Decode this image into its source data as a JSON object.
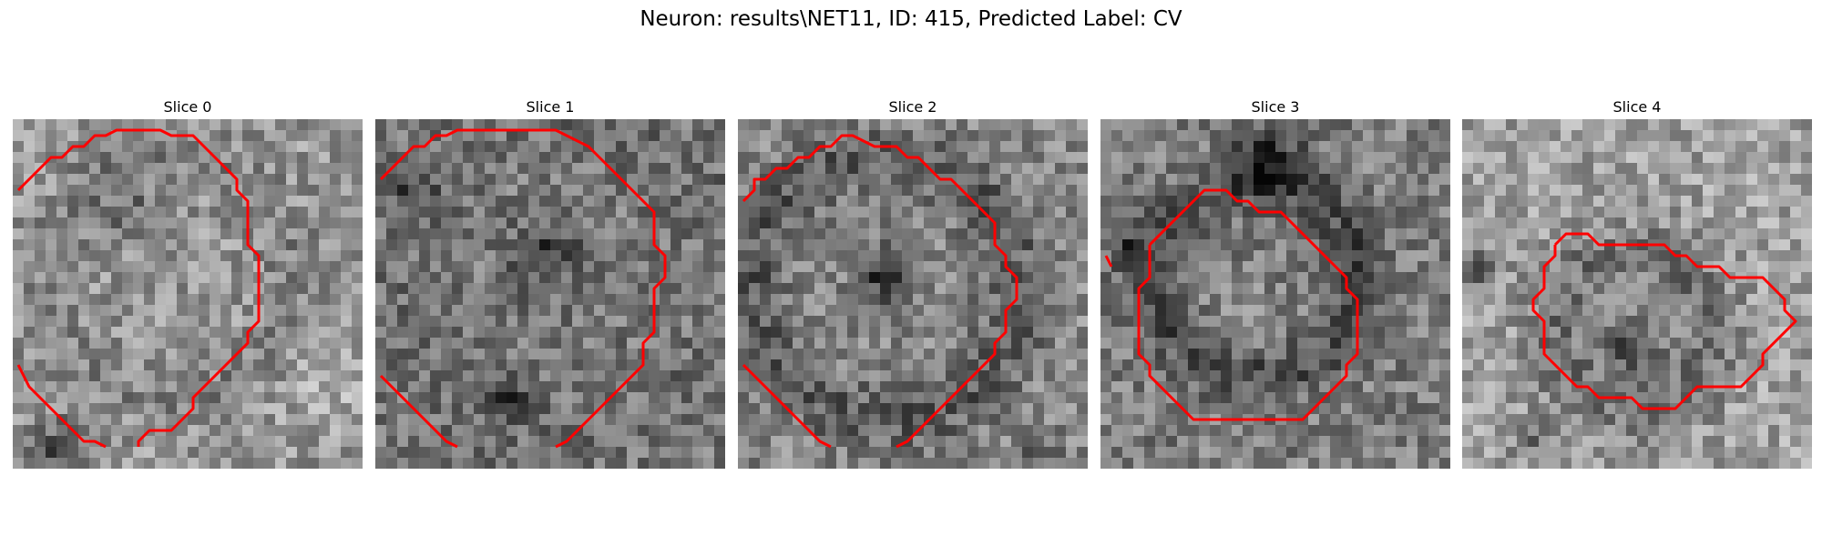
{
  "figure": {
    "title": "Neuron: results\\NET11, ID: 415, Predicted Label: CV",
    "contour_color": "#ff0000"
  },
  "slices": [
    {
      "title": "Slice 0"
    },
    {
      "title": "Slice 1"
    },
    {
      "title": "Slice 2"
    },
    {
      "title": "Slice 3"
    },
    {
      "title": "Slice 4"
    }
  ]
}
